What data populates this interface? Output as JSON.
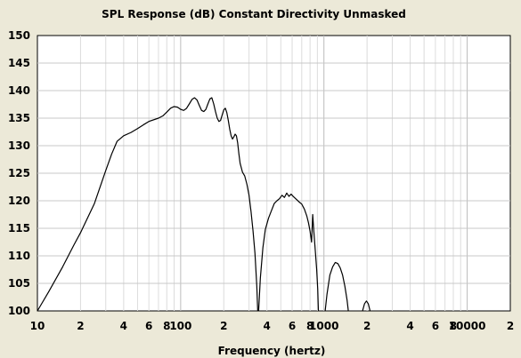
{
  "chart_data": {
    "type": "line",
    "title": "SPL Response (dB)   Constant Directivity   Unmasked",
    "xlabel": "Frequency (hertz)",
    "ylabel": "",
    "x_scale": "log",
    "xlim": [
      10,
      20000
    ],
    "ylim": [
      100,
      150
    ],
    "grid": true,
    "y_ticks": [
      100,
      105,
      110,
      115,
      120,
      125,
      130,
      135,
      140,
      145,
      150
    ],
    "x_tick_labels": [
      {
        "x": 10,
        "label": "10"
      },
      {
        "x": 20,
        "label": "2"
      },
      {
        "x": 40,
        "label": "4"
      },
      {
        "x": 60,
        "label": "6"
      },
      {
        "x": 80,
        "label": "8"
      },
      {
        "x": 100,
        "label": "100"
      },
      {
        "x": 200,
        "label": "2"
      },
      {
        "x": 400,
        "label": "4"
      },
      {
        "x": 600,
        "label": "6"
      },
      {
        "x": 800,
        "label": "8"
      },
      {
        "x": 1000,
        "label": "1000"
      },
      {
        "x": 2000,
        "label": "2"
      },
      {
        "x": 4000,
        "label": "4"
      },
      {
        "x": 6000,
        "label": "6"
      },
      {
        "x": 8000,
        "label": "8"
      },
      {
        "x": 10000,
        "label": "10000"
      },
      {
        "x": 20000,
        "label": "2"
      }
    ],
    "series": [
      {
        "segments": [
          [
            [
              10,
              100
            ],
            [
              12,
              103.5
            ],
            [
              15,
              108
            ],
            [
              18,
              112
            ],
            [
              20,
              114.2
            ],
            [
              25,
              119.5
            ],
            [
              30,
              125.5
            ],
            [
              33,
              128.5
            ],
            [
              36,
              130.8
            ],
            [
              40,
              131.8
            ],
            [
              45,
              132.4
            ],
            [
              50,
              133.1
            ],
            [
              55,
              133.8
            ],
            [
              60,
              134.4
            ],
            [
              70,
              135
            ],
            [
              75,
              135.4
            ],
            [
              80,
              136.1
            ],
            [
              85,
              136.8
            ],
            [
              90,
              137.1
            ],
            [
              95,
              137
            ],
            [
              100,
              136.6
            ],
            [
              105,
              136.4
            ],
            [
              110,
              136.8
            ],
            [
              115,
              137.6
            ],
            [
              120,
              138.4
            ],
            [
              125,
              138.7
            ],
            [
              130,
              138.3
            ],
            [
              135,
              137.3
            ],
            [
              140,
              136.4
            ],
            [
              145,
              136.2
            ],
            [
              150,
              136.6
            ],
            [
              155,
              137.6
            ],
            [
              160,
              138.5
            ],
            [
              165,
              138.7
            ],
            [
              170,
              137.6
            ],
            [
              175,
              136.2
            ],
            [
              180,
              135
            ],
            [
              185,
              134.4
            ],
            [
              190,
              134.6
            ],
            [
              195,
              135.6
            ],
            [
              200,
              136.5
            ],
            [
              205,
              136.8
            ],
            [
              210,
              136
            ],
            [
              215,
              134.6
            ],
            [
              220,
              133
            ],
            [
              225,
              131.8
            ],
            [
              230,
              131.2
            ],
            [
              235,
              131.6
            ],
            [
              240,
              132.1
            ],
            [
              245,
              131.8
            ],
            [
              250,
              130.5
            ],
            [
              255,
              128.5
            ],
            [
              260,
              126.8
            ],
            [
              270,
              125.2
            ],
            [
              280,
              124.5
            ],
            [
              290,
              123
            ],
            [
              300,
              121
            ],
            [
              310,
              118
            ],
            [
              320,
              114.5
            ],
            [
              330,
              110.5
            ],
            [
              340,
              104.5
            ],
            [
              345,
              100
            ]
          ],
          [
            [
              350,
              100
            ],
            [
              360,
              106
            ],
            [
              375,
              111.5
            ],
            [
              390,
              114.8
            ],
            [
              410,
              116.8
            ],
            [
              430,
              118.2
            ],
            [
              450,
              119.5
            ],
            [
              470,
              120
            ],
            [
              490,
              120.4
            ],
            [
              510,
              121
            ],
            [
              530,
              120.6
            ],
            [
              550,
              121.4
            ],
            [
              570,
              120.8
            ],
            [
              590,
              121.2
            ],
            [
              610,
              120.8
            ],
            [
              640,
              120.3
            ],
            [
              670,
              119.8
            ],
            [
              700,
              119.4
            ],
            [
              730,
              118.5
            ],
            [
              760,
              117.2
            ],
            [
              780,
              116
            ],
            [
              800,
              114.5
            ],
            [
              820,
              112.5
            ],
            [
              835,
              117.5
            ],
            [
              850,
              114.5
            ],
            [
              870,
              111
            ],
            [
              890,
              107.5
            ],
            [
              905,
              104
            ],
            [
              915,
              100
            ]
          ],
          [
            [
              1020,
              100
            ],
            [
              1050,
              103
            ],
            [
              1100,
              106.5
            ],
            [
              1150,
              108
            ],
            [
              1200,
              108.8
            ],
            [
              1250,
              108.6
            ],
            [
              1300,
              107.8
            ],
            [
              1350,
              106.5
            ],
            [
              1400,
              104.5
            ],
            [
              1450,
              102
            ],
            [
              1480,
              100
            ]
          ],
          [
            [
              1860,
              100
            ],
            [
              1920,
              101.3
            ],
            [
              1980,
              101.8
            ],
            [
              2040,
              101.3
            ],
            [
              2100,
              100
            ]
          ]
        ]
      }
    ]
  }
}
